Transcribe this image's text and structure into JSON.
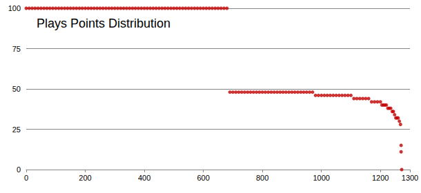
{
  "chart_data": {
    "type": "scatter",
    "title": "Plays Points Distribution",
    "color": "#c00000",
    "marker": "circle",
    "grid": true,
    "xlim": [
      0,
      1300
    ],
    "xticks": [
      0,
      200,
      400,
      600,
      800,
      1000,
      1200
    ],
    "ylim": [
      0,
      100
    ],
    "yticks": [
      0,
      25,
      50,
      75,
      100
    ],
    "x": [
      0,
      10,
      20,
      30,
      40,
      50,
      60,
      70,
      80,
      90,
      100,
      110,
      120,
      130,
      140,
      150,
      160,
      170,
      180,
      190,
      200,
      210,
      220,
      230,
      240,
      250,
      260,
      270,
      280,
      290,
      300,
      310,
      320,
      330,
      340,
      350,
      360,
      370,
      380,
      390,
      400,
      410,
      420,
      430,
      440,
      450,
      460,
      470,
      480,
      490,
      500,
      510,
      520,
      530,
      540,
      550,
      560,
      570,
      580,
      590,
      600,
      610,
      620,
      630,
      640,
      650,
      660,
      670,
      680,
      690,
      700,
      710,
      720,
      730,
      740,
      750,
      760,
      770,
      780,
      790,
      800,
      810,
      820,
      830,
      840,
      850,
      860,
      870,
      880,
      890,
      900,
      910,
      920,
      930,
      940,
      950,
      960,
      970,
      980,
      990,
      1000,
      1010,
      1020,
      1030,
      1040,
      1050,
      1060,
      1070,
      1080,
      1090,
      1100,
      1110,
      1120,
      1130,
      1140,
      1150,
      1160,
      1170,
      1180,
      1190,
      1200,
      1205,
      1210,
      1215,
      1220,
      1225,
      1230,
      1235,
      1240,
      1244,
      1248,
      1252,
      1256,
      1260,
      1264,
      1268,
      1270,
      1270,
      1272
    ],
    "values": [
      100,
      100,
      100,
      100,
      100,
      100,
      100,
      100,
      100,
      100,
      100,
      100,
      100,
      100,
      100,
      100,
      100,
      100,
      100,
      100,
      100,
      100,
      100,
      100,
      100,
      100,
      100,
      100,
      100,
      100,
      100,
      100,
      100,
      100,
      100,
      100,
      100,
      100,
      100,
      100,
      100,
      100,
      100,
      100,
      100,
      100,
      100,
      100,
      100,
      100,
      100,
      100,
      100,
      100,
      100,
      100,
      100,
      100,
      100,
      100,
      100,
      100,
      100,
      100,
      100,
      100,
      100,
      100,
      100,
      48,
      48,
      48,
      48,
      48,
      48,
      48,
      48,
      48,
      48,
      48,
      48,
      48,
      48,
      48,
      48,
      48,
      48,
      48,
      48,
      48,
      48,
      48,
      48,
      48,
      48,
      48,
      48,
      48,
      46,
      46,
      46,
      46,
      46,
      46,
      46,
      46,
      46,
      46,
      46,
      46,
      46,
      44,
      44,
      44,
      44,
      44,
      44,
      42,
      42,
      42,
      42,
      40,
      40,
      40,
      40,
      38,
      38,
      38,
      36,
      36,
      34,
      32,
      32,
      32,
      30,
      28,
      15,
      11,
      0
    ]
  }
}
